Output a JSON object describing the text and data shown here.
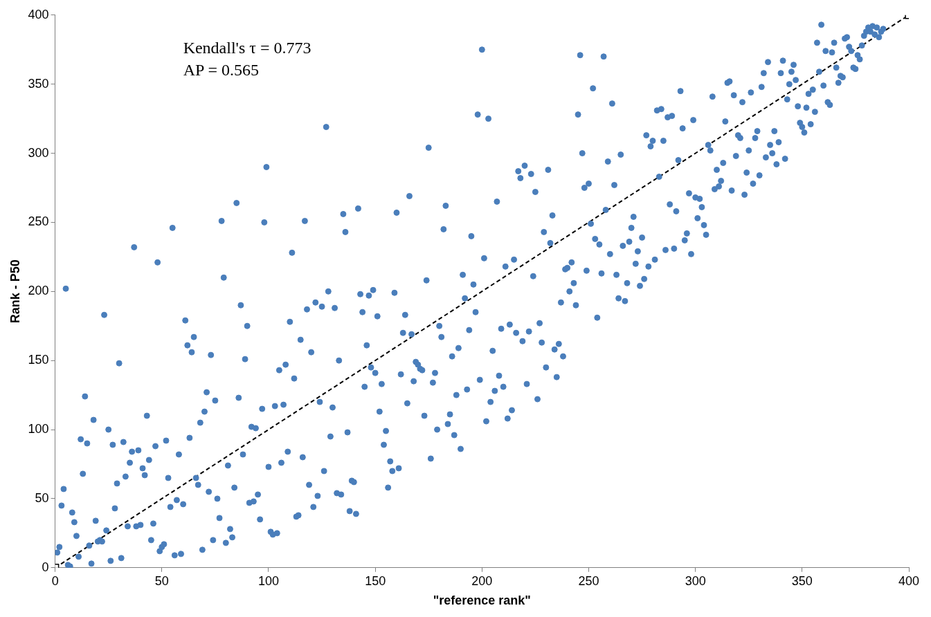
{
  "chart_data": {
    "type": "scatter",
    "xlabel": "\"reference rank\"",
    "ylabel": "Rank - P50",
    "annotations": [
      "Kendall's τ = 0.773",
      "AP = 0.565"
    ],
    "xlim": [
      0,
      400
    ],
    "xticks": [
      0,
      50,
      100,
      150,
      200,
      250,
      300,
      350,
      400
    ],
    "ylim": [
      0,
      400
    ],
    "yticks": [
      0,
      50,
      100,
      150,
      200,
      250,
      300,
      350,
      400
    ],
    "grid": false,
    "legend": false,
    "marker": "circle",
    "series": [
      {
        "color": "#4a7ebb",
        "x": [
          1,
          2,
          3,
          4,
          5,
          6,
          7,
          8,
          9,
          10,
          11,
          12,
          13,
          14,
          15,
          16,
          17,
          18,
          19,
          20,
          21,
          22,
          23,
          24,
          25,
          26,
          27,
          28,
          29,
          30,
          31,
          32,
          33,
          34,
          35,
          36,
          37,
          38,
          39,
          40,
          41,
          42,
          43,
          44,
          45,
          46,
          47,
          48,
          49,
          50,
          51,
          52,
          53,
          54,
          55,
          56,
          57,
          58,
          59,
          60,
          61,
          62,
          63,
          64,
          65,
          66,
          67,
          68,
          69,
          70,
          71,
          72,
          73,
          74,
          75,
          76,
          77,
          78,
          79,
          80,
          81,
          82,
          83,
          84,
          85,
          86,
          87,
          88,
          89,
          90,
          91,
          92,
          93,
          94,
          95,
          96,
          97,
          98,
          99,
          100,
          101,
          102,
          103,
          104,
          105,
          106,
          107,
          108,
          109,
          110,
          111,
          112,
          113,
          114,
          115,
          116,
          117,
          118,
          119,
          120,
          121,
          122,
          123,
          124,
          125,
          126,
          127,
          128,
          129,
          130,
          131,
          132,
          133,
          134,
          135,
          136,
          137,
          138,
          139,
          140,
          141,
          142,
          143,
          144,
          145,
          146,
          147,
          148,
          149,
          150,
          151,
          152,
          153,
          154,
          155,
          156,
          157,
          158,
          159,
          160,
          161,
          162,
          163,
          164,
          165,
          166,
          167,
          168,
          169,
          170,
          171,
          172,
          173,
          174,
          175,
          176,
          177,
          178,
          179,
          180,
          181,
          182,
          183,
          184,
          185,
          186,
          187,
          188,
          189,
          190,
          191,
          192,
          193,
          194,
          195,
          196,
          197,
          198,
          199,
          200,
          201,
          202,
          203,
          204,
          205,
          206,
          207,
          208,
          209,
          210,
          211,
          212,
          213,
          214,
          215,
          216,
          217,
          218,
          219,
          220,
          221,
          222,
          223,
          224,
          225,
          226,
          227,
          228,
          229,
          230,
          231,
          232,
          233,
          234,
          235,
          236,
          237,
          238,
          239,
          240,
          241,
          242,
          243,
          244,
          245,
          246,
          247,
          248,
          249,
          250,
          251,
          252,
          253,
          254,
          255,
          256,
          257,
          258,
          259,
          260,
          261,
          262,
          263,
          264,
          265,
          266,
          267,
          268,
          269,
          270,
          271,
          272,
          273,
          274,
          275,
          276,
          277,
          278,
          279,
          280,
          281,
          282,
          283,
          284,
          285,
          286,
          287,
          288,
          289,
          290,
          291,
          292,
          293,
          294,
          295,
          296,
          297,
          298,
          299,
          300,
          301,
          302,
          303,
          304,
          305,
          306,
          307,
          308,
          309,
          310,
          311,
          312,
          313,
          314,
          315,
          316,
          317,
          318,
          319,
          320,
          321,
          322,
          323,
          324,
          325,
          326,
          327,
          328,
          329,
          330,
          331,
          332,
          333,
          334,
          335,
          336,
          337,
          338,
          339,
          340,
          341,
          342,
          343,
          344,
          345,
          346,
          347,
          348,
          349,
          350,
          351,
          352,
          353,
          354,
          355,
          356,
          357,
          358,
          359,
          360,
          361,
          362,
          363,
          364,
          365,
          366,
          367,
          368,
          369,
          370,
          371,
          372,
          373,
          374,
          375,
          376,
          377,
          378,
          379,
          380,
          381,
          382,
          383,
          384,
          385,
          386,
          387,
          388
        ],
        "values": [
          11,
          15,
          45,
          57,
          202,
          2,
          1,
          40,
          33,
          23,
          8,
          93,
          68,
          124,
          90,
          16,
          3,
          107,
          34,
          19,
          20,
          19,
          183,
          27,
          100,
          5,
          89,
          43,
          61,
          148,
          7,
          91,
          66,
          30,
          76,
          84,
          232,
          30,
          85,
          31,
          72,
          67,
          110,
          78,
          20,
          32,
          88,
          221,
          12,
          15,
          17,
          92,
          65,
          44,
          246,
          9,
          49,
          82,
          10,
          46,
          179,
          161,
          94,
          156,
          167,
          65,
          60,
          105,
          13,
          113,
          127,
          55,
          154,
          20,
          121,
          50,
          36,
          251,
          210,
          18,
          74,
          28,
          22,
          58,
          264,
          123,
          190,
          82,
          151,
          175,
          47,
          102,
          48,
          101,
          53,
          35,
          115,
          250,
          290,
          73,
          26,
          24,
          117,
          25,
          143,
          76,
          118,
          147,
          84,
          178,
          228,
          137,
          37,
          38,
          165,
          80,
          251,
          187,
          60,
          156,
          44,
          192,
          52,
          120,
          189,
          70,
          319,
          200,
          95,
          116,
          188,
          54,
          150,
          53,
          256,
          243,
          98,
          41,
          63,
          62,
          39,
          260,
          198,
          185,
          131,
          161,
          197,
          145,
          201,
          141,
          182,
          113,
          133,
          89,
          99,
          58,
          77,
          70,
          199,
          257,
          72,
          140,
          170,
          183,
          119,
          269,
          169,
          135,
          149,
          147,
          144,
          143,
          110,
          208,
          304,
          79,
          134,
          141,
          100,
          175,
          167,
          245,
          262,
          104,
          111,
          153,
          96,
          125,
          159,
          86,
          212,
          195,
          129,
          172,
          240,
          205,
          185,
          328,
          136,
          375,
          224,
          106,
          325,
          120,
          157,
          128,
          265,
          139,
          173,
          131,
          218,
          108,
          176,
          114,
          223,
          170,
          287,
          282,
          164,
          291,
          133,
          171,
          285,
          211,
          272,
          122,
          177,
          163,
          243,
          145,
          288,
          235,
          255,
          158,
          138,
          162,
          192,
          153,
          216,
          217,
          200,
          221,
          206,
          190,
          328,
          371,
          300,
          275,
          215,
          278,
          249,
          347,
          238,
          181,
          234,
          213,
          370,
          259,
          294,
          227,
          336,
          277,
          212,
          195,
          299,
          233,
          193,
          206,
          236,
          246,
          254,
          220,
          229,
          204,
          239,
          209,
          313,
          218,
          305,
          309,
          223,
          331,
          283,
          332,
          309,
          230,
          326,
          263,
          327,
          231,
          258,
          295,
          345,
          318,
          237,
          242,
          271,
          227,
          324,
          268,
          253,
          267,
          261,
          248,
          241,
          306,
          302,
          341,
          274,
          288,
          276,
          280,
          293,
          323,
          351,
          352,
          273,
          342,
          298,
          313,
          311,
          337,
          270,
          286,
          302,
          344,
          278,
          311,
          316,
          284,
          348,
          358,
          297,
          366,
          306,
          300,
          316,
          292,
          308,
          358,
          367,
          296,
          339,
          350,
          359,
          364,
          353,
          334,
          322,
          319,
          315,
          333,
          343,
          321,
          346,
          330,
          380,
          359,
          393,
          349,
          374,
          337,
          335,
          373,
          380,
          362,
          351,
          356,
          355,
          383,
          384,
          377,
          374,
          362,
          361,
          371,
          368,
          378,
          385,
          388,
          391,
          388,
          392,
          386,
          391,
          384,
          388,
          390
        ]
      },
      {
        "type": "line",
        "color": "#000000",
        "marker": "square",
        "line_style": "dashed",
        "x": [
          0,
          400
        ],
        "values": [
          0,
          400
        ]
      }
    ]
  }
}
